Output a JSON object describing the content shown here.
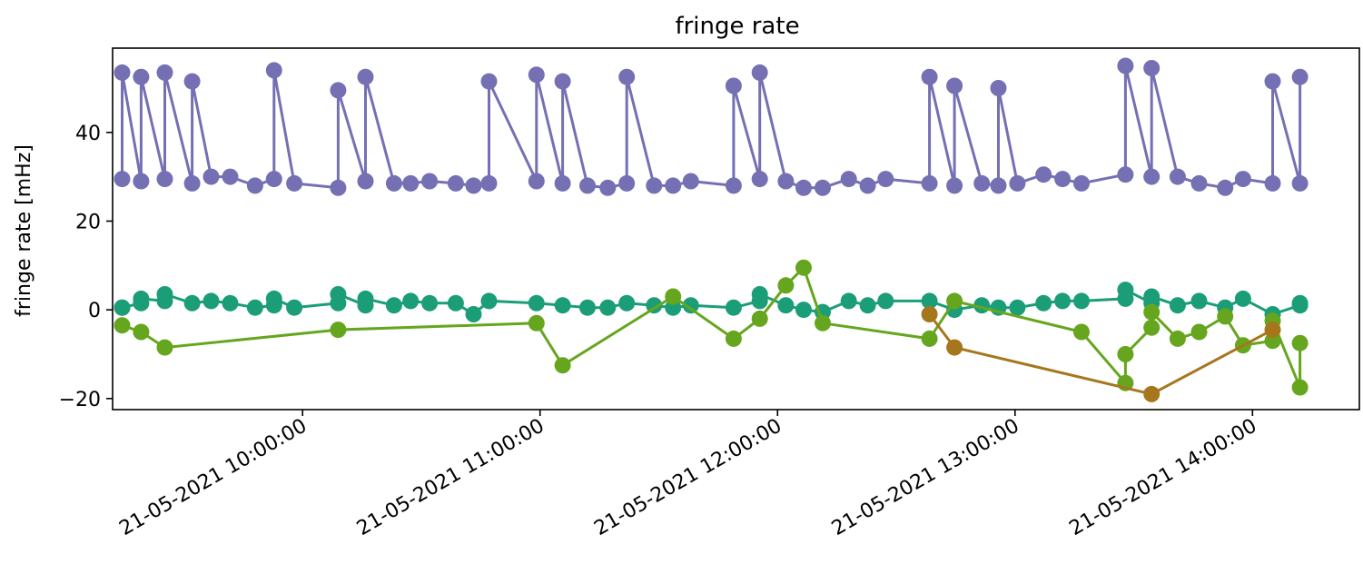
{
  "chart_data": {
    "type": "line",
    "title": "fringe rate",
    "xlabel": "",
    "ylabel": "fringe rate [mHz]",
    "xlim_hours": [
      9.2,
      14.45
    ],
    "ylim": [
      -22.5,
      59
    ],
    "grid": false,
    "legend": "none",
    "yticks": [
      -20,
      0,
      20,
      40
    ],
    "ytick_labels": [
      "−20",
      "0",
      "20",
      "40"
    ],
    "xticks": [
      10,
      11,
      12,
      13,
      14
    ],
    "xtick_labels": [
      "21-05-2021 10:00:00",
      "21-05-2021 11:00:00",
      "21-05-2021 12:00:00",
      "21-05-2021 13:00:00",
      "21-05-2021 14:00:00"
    ],
    "series": [
      {
        "color": "#7570b3",
        "x": [
          9.24,
          9.24,
          9.32,
          9.32,
          9.42,
          9.42,
          9.535,
          9.535,
          9.615,
          9.695,
          9.8,
          9.88,
          9.88,
          9.965,
          10.15,
          10.15,
          10.265,
          10.265,
          10.385,
          10.455,
          10.535,
          10.645,
          10.72,
          10.785,
          10.785,
          10.985,
          10.985,
          11.095,
          11.095,
          11.2,
          11.285,
          11.365,
          11.365,
          11.48,
          11.56,
          11.635,
          11.815,
          11.815,
          11.925,
          11.925,
          12.035,
          12.11,
          12.19,
          12.3,
          12.38,
          12.455,
          12.64,
          12.64,
          12.745,
          12.745,
          12.86,
          12.93,
          12.93,
          13.01,
          13.12,
          13.2,
          13.28,
          13.465,
          13.465,
          13.575,
          13.575,
          13.685,
          13.775,
          13.885,
          13.96,
          14.085,
          14.085,
          14.2,
          14.2
        ],
        "y": [
          29.5,
          53.5,
          29,
          52.5,
          29.5,
          53.5,
          28.5,
          51.5,
          30,
          30,
          28,
          29.5,
          54,
          28.5,
          27.5,
          49.5,
          29,
          52.5,
          28.5,
          28.5,
          29,
          28.5,
          28,
          28.5,
          51.5,
          29,
          53,
          28.5,
          51.5,
          28,
          27.5,
          28.5,
          52.5,
          28,
          28,
          29,
          28,
          50.5,
          29.5,
          53.5,
          29,
          27.5,
          27.5,
          29.5,
          28,
          29.5,
          28.5,
          52.5,
          28,
          50.5,
          28.5,
          28,
          50,
          28.5,
          30.5,
          29.5,
          28.5,
          30.5,
          55,
          30,
          54.5,
          30,
          28.5,
          27.5,
          29.5,
          28.5,
          51.5,
          28.5,
          52.5
        ]
      },
      {
        "color": "#1b9e77",
        "x": [
          9.24,
          9.24,
          9.32,
          9.32,
          9.42,
          9.42,
          9.535,
          9.615,
          9.695,
          9.8,
          9.88,
          9.88,
          9.965,
          10.15,
          10.15,
          10.265,
          10.265,
          10.385,
          10.455,
          10.535,
          10.645,
          10.72,
          10.785,
          10.985,
          11.095,
          11.2,
          11.285,
          11.365,
          11.48,
          11.56,
          11.635,
          11.815,
          11.925,
          11.925,
          12.035,
          12.11,
          12.19,
          12.3,
          12.38,
          12.455,
          12.64,
          12.745,
          12.86,
          12.93,
          13.01,
          13.12,
          13.2,
          13.28,
          13.465,
          13.465,
          13.575,
          13.575,
          13.685,
          13.775,
          13.885,
          13.96,
          14.085,
          14.2,
          14.2
        ],
        "y": [
          0.5,
          0.5,
          1.5,
          2.5,
          2,
          3.5,
          1.5,
          2,
          1.5,
          0.5,
          1,
          2.5,
          0.5,
          1.5,
          3.5,
          1,
          2.5,
          1,
          2,
          1.5,
          1.5,
          -1,
          2,
          1.5,
          1,
          0.5,
          0.5,
          1.5,
          1,
          0.5,
          1,
          0.5,
          2,
          3.5,
          1,
          0,
          -0.5,
          2,
          1,
          2,
          2,
          0,
          1,
          0.5,
          0.5,
          1.5,
          2,
          2,
          2.5,
          4.5,
          1.5,
          3,
          1,
          2,
          0.5,
          2.5,
          -1,
          1,
          1.5
        ]
      },
      {
        "color": "#66a61e",
        "x": [
          9.24,
          9.32,
          9.42,
          10.15,
          10.985,
          11.095,
          11.56,
          11.815,
          11.925,
          12.035,
          12.11,
          12.19,
          12.64,
          12.745,
          13.28,
          13.465,
          13.465,
          13.575,
          13.575,
          13.685,
          13.775,
          13.885,
          13.96,
          14.085,
          14.085,
          14.2,
          14.2
        ],
        "y": [
          -3.5,
          -5,
          -8.5,
          -4.5,
          -3,
          -12.5,
          3,
          -6.5,
          -2,
          5.5,
          9.5,
          -3,
          -6.5,
          2,
          -5,
          -16.5,
          -10,
          -4,
          -0.5,
          -6.5,
          -5,
          -1.5,
          -8,
          -7,
          -2.5,
          -17.5,
          -7.5
        ]
      },
      {
        "color": "#a6761d",
        "x": [
          12.64,
          12.745,
          13.575,
          14.085
        ],
        "y": [
          -1,
          -8.5,
          -19,
          -4.5
        ]
      }
    ]
  }
}
